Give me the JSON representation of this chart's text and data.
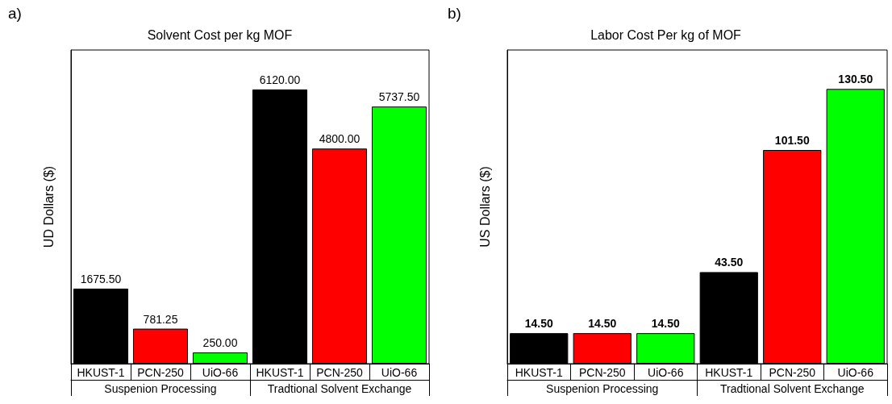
{
  "chart_data": [
    {
      "type": "bar",
      "title": "Solvent Cost per kg MOF",
      "ylabel": "UD Dollars ($)",
      "annotations": [
        "a)",
        "Suspenion Processing",
        "Tradtional Solvent Exchange"
      ],
      "categories": [
        "HKUST-1",
        "PCN-250",
        "UiO-66",
        "HKUST-1",
        "PCN-250",
        "UiO-66"
      ],
      "values": [
        1675.5,
        781.25,
        250,
        6120,
        4800,
        5737.5
      ],
      "value_labels": [
        "1675.50",
        "781.25",
        "250.00",
        "6120.00",
        "4800.00",
        "5737.50"
      ],
      "colors": [
        "#000000",
        "#ff0000",
        "#00ff00",
        "#000000",
        "#ff0000",
        "#00ff00"
      ],
      "ylim": [
        0,
        7000
      ],
      "tick_labels": "x",
      "grid": false
    },
    {
      "type": "bar",
      "title": "Labor Cost Per kg of MOF",
      "ylabel": "US Dollars ($)",
      "annotations": [
        "b)",
        "Suspenion Processing",
        "Tradtional Solvent Exchange"
      ],
      "categories": [
        "HKUST-1",
        "PCN-250",
        "UiO-66",
        "HKUST-1",
        "PCN-250",
        "UiO-66"
      ],
      "values": [
        14.5,
        14.5,
        14.5,
        43.5,
        101.5,
        130.5
      ],
      "value_labels": [
        "14.50",
        "14.50",
        "14.50",
        "43.50",
        "101.50",
        "130.50"
      ],
      "colors": [
        "#000000",
        "#ff0000",
        "#00ff00",
        "#000000",
        "#ff0000",
        "#00ff00"
      ],
      "ylim": [
        0,
        149
      ],
      "tick_labels": "x",
      "grid": false
    }
  ]
}
